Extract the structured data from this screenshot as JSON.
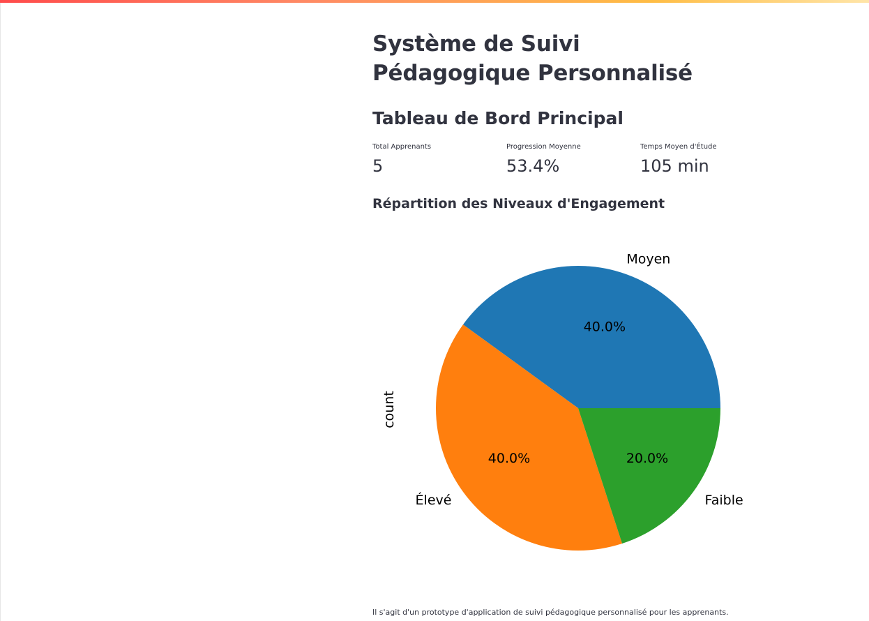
{
  "header": {
    "title": "Système de Suivi Pédagogique Personnalisé",
    "subtitle": "Tableau de Bord Principal"
  },
  "metrics": [
    {
      "label": "Total Apprenants",
      "value": "5"
    },
    {
      "label": "Progression Moyenne",
      "value": "53.4%"
    },
    {
      "label": "Temps Moyen d'Étude",
      "value": "105 min"
    }
  ],
  "chart_section": {
    "title": "Répartition des Niveaux d'Engagement"
  },
  "chart_data": {
    "type": "pie",
    "ylabel": "count",
    "categories": [
      "Moyen",
      "Élevé",
      "Faible"
    ],
    "values": [
      2,
      2,
      1
    ],
    "percent_labels": [
      "40.0%",
      "40.0%",
      "20.0%"
    ],
    "colors": [
      "#1f77b4",
      "#ff7f0e",
      "#2ca02c"
    ],
    "start_angle_deg": 0,
    "direction": "counterclockwise"
  },
  "footer": {
    "caption": "Il s'agit d'un prototype d'application de suivi pédagogique personnalisé pour les apprenants."
  }
}
